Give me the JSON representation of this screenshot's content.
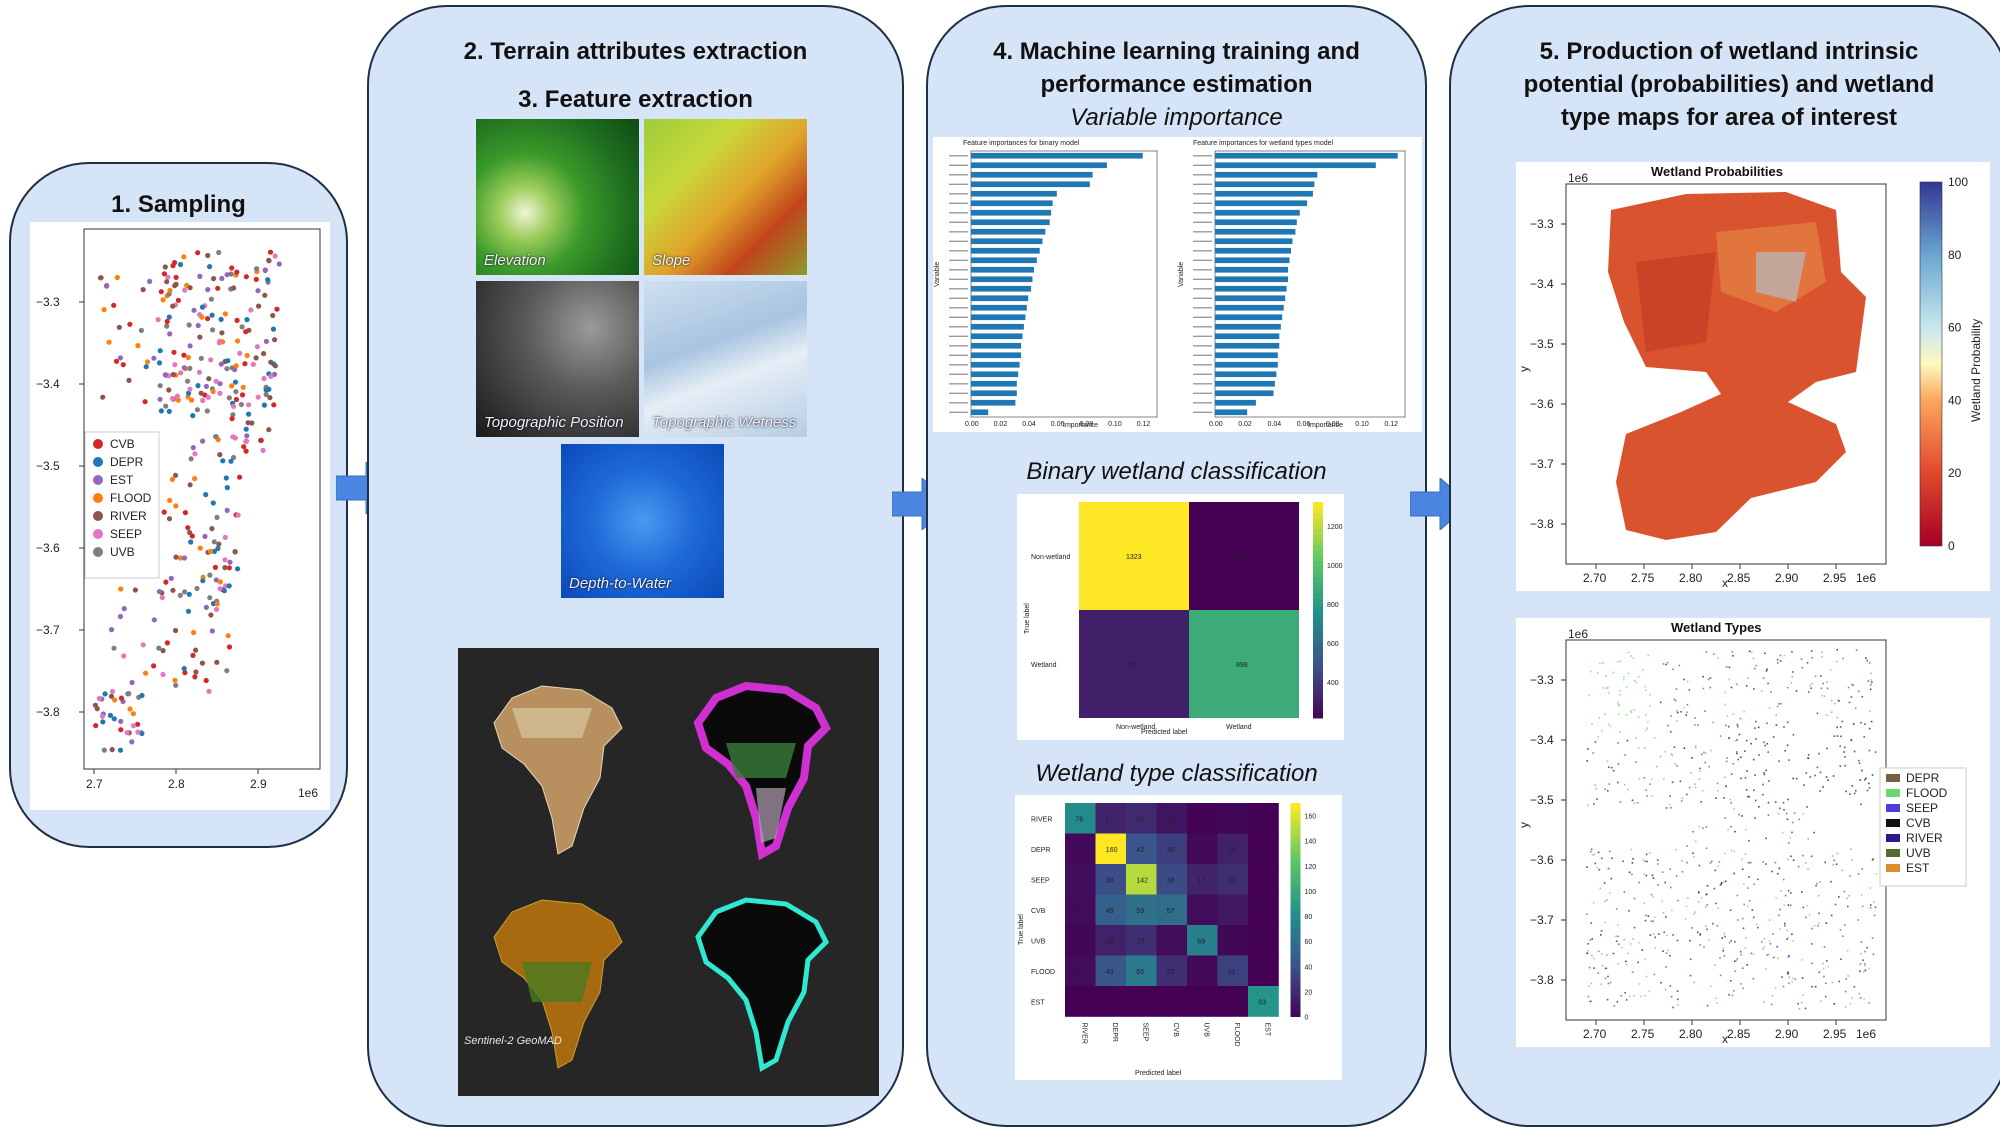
{
  "panels": {
    "sampling": {
      "title": "1. Sampling"
    },
    "terrain": {
      "title1": "2. Terrain attributes extraction",
      "title2": "3. Feature extraction"
    },
    "ml": {
      "title": "4. Machine learning training and performance estimation"
    },
    "production": {
      "title": "5. Production of wetland intrinsic potential (probabilities) and wetland type maps for area of interest"
    }
  },
  "terrain_tiles": {
    "elevation": "Elevation",
    "slope": "Slope",
    "topo_position": "Topographic Position",
    "topo_wetness": "Topographic Wetness",
    "depth_to_water": "Depth-to-Water",
    "geomad": "Sentinel-2 GeoMAD"
  },
  "sampling_map": {
    "x_ticks": [
      "2.7",
      "2.8",
      "2.9"
    ],
    "y_ticks": [
      "−3.3",
      "−3.4",
      "−3.5",
      "−3.6",
      "−3.7",
      "−3.8"
    ],
    "exponent": "1e6",
    "legend": [
      {
        "label": "CVB",
        "color": "#d62728"
      },
      {
        "label": "DEPR",
        "color": "#1f77b4"
      },
      {
        "label": "EST",
        "color": "#9467bd"
      },
      {
        "label": "FLOOD",
        "color": "#ff7f0e"
      },
      {
        "label": "RIVER",
        "color": "#8c564b"
      },
      {
        "label": "SEEP",
        "color": "#e377c2"
      },
      {
        "label": "UVB",
        "color": "#7f7f7f"
      }
    ]
  },
  "ml": {
    "variable_importance_title": "Variable importance",
    "binary_title": "Binary wetland classification",
    "type_title": "Wetland type classification",
    "fi_left_title": "Feature importances for binary model",
    "fi_right_title": "Feature importances for wetland types model",
    "fi_xlabel": "Importance",
    "fi_ylabel": "Variable",
    "fi_left_values": [
      0.12,
      0.095,
      0.085,
      0.083,
      0.06,
      0.057,
      0.056,
      0.055,
      0.052,
      0.05,
      0.048,
      0.046,
      0.044,
      0.043,
      0.042,
      0.04,
      0.039,
      0.038,
      0.037,
      0.036,
      0.035,
      0.035,
      0.034,
      0.033,
      0.032,
      0.032,
      0.031,
      0.012
    ],
    "fi_left_ticks": [
      "0.00",
      "0.02",
      "0.04",
      "0.06",
      "0.08",
      "0.10",
      "0.12"
    ],
    "fi_right_values": [
      0.125,
      0.11,
      0.07,
      0.068,
      0.067,
      0.063,
      0.058,
      0.056,
      0.055,
      0.053,
      0.052,
      0.051,
      0.05,
      0.05,
      0.049,
      0.048,
      0.047,
      0.046,
      0.045,
      0.044,
      0.044,
      0.043,
      0.043,
      0.042,
      0.041,
      0.04,
      0.028,
      0.022
    ],
    "fi_right_ticks": [
      "0.00",
      "0.02",
      "0.04",
      "0.06",
      "0.08",
      "0.10",
      "0.12"
    ],
    "binary_cm": {
      "rows": [
        "Non-wetland",
        "Wetland"
      ],
      "cols": [
        "Non-wetland",
        "Wetland"
      ],
      "values": [
        [
          1323,
          216
        ],
        [
          321,
          898
        ]
      ],
      "xlabel": "Predicted label",
      "ylabel": "True label",
      "cbar_ticks": [
        "1200",
        "1000",
        "800",
        "600",
        "400"
      ]
    },
    "type_cm": {
      "labels": [
        "RIVER",
        "DEPR",
        "SEEP",
        "CVB",
        "UVB",
        "FLOOD",
        "EST"
      ],
      "values": [
        [
          76,
          17,
          20,
          10,
          1,
          3,
          0
        ],
        [
          4,
          160,
          42,
          30,
          4,
          16,
          0
        ],
        [
          7,
          38,
          142,
          36,
          17,
          22,
          0
        ],
        [
          5,
          49,
          59,
          57,
          5,
          11,
          0
        ],
        [
          3,
          16,
          23,
          6,
          69,
          3,
          0
        ],
        [
          5,
          43,
          65,
          22,
          4,
          31,
          0
        ],
        [
          0,
          0,
          0,
          0,
          0,
          0,
          83
        ]
      ],
      "xlabel": "Predicted label",
      "ylabel": "True label",
      "cbar_ticks": [
        "160",
        "140",
        "120",
        "100",
        "80",
        "60",
        "40",
        "20",
        "0"
      ]
    }
  },
  "prob_map": {
    "title": "Wetland Probabilities",
    "exp_top": "1e6",
    "exp_bottom": "1e6",
    "x_ticks": [
      "2.70",
      "2.75",
      "2.80",
      "2.85",
      "2.90",
      "2.95"
    ],
    "y_ticks": [
      "−3.3",
      "−3.4",
      "−3.5",
      "−3.6",
      "−3.7",
      "−3.8"
    ],
    "xlabel": "x",
    "ylabel": "y",
    "cbar_label": "Wetland Probability",
    "cbar_ticks": [
      "100",
      "80",
      "60",
      "40",
      "20",
      "0"
    ]
  },
  "types_map": {
    "title": "Wetland Types",
    "exp_top": "1e6",
    "exp_bottom": "1e6",
    "x_ticks": [
      "2.70",
      "2.75",
      "2.80",
      "2.85",
      "2.90",
      "2.95"
    ],
    "y_ticks": [
      "−3.3",
      "−3.4",
      "−3.5",
      "−3.6",
      "−3.7",
      "−3.8"
    ],
    "xlabel": "x",
    "ylabel": "y",
    "legend": [
      {
        "label": "DEPR",
        "color": "#7a6040"
      },
      {
        "label": "FLOOD",
        "color": "#6fd66f"
      },
      {
        "label": "SEEP",
        "color": "#4b3fd8"
      },
      {
        "label": "CVB",
        "color": "#111111"
      },
      {
        "label": "RIVER",
        "color": "#2a1a8a"
      },
      {
        "label": "UVB",
        "color": "#556b2f"
      },
      {
        "label": "EST",
        "color": "#e08a2e"
      }
    ]
  }
}
